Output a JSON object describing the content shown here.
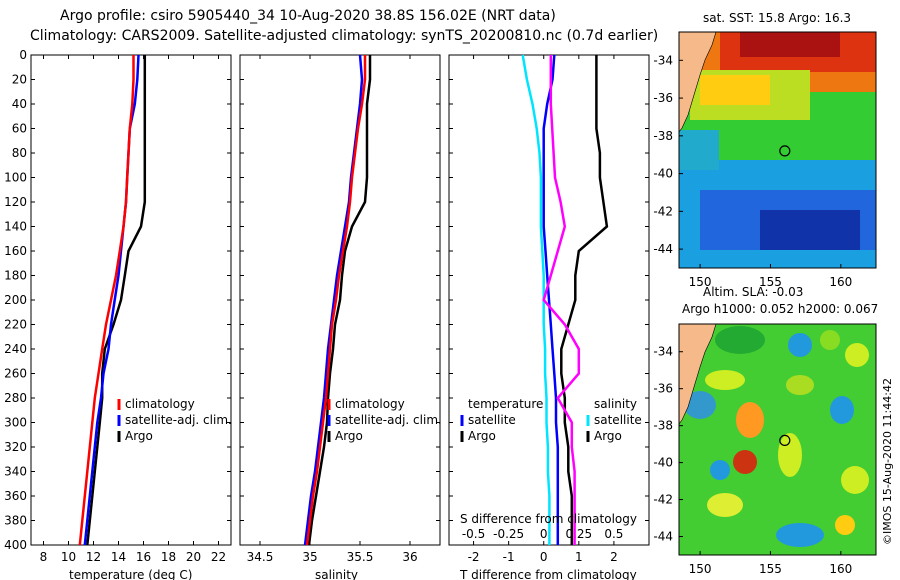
{
  "header": {
    "line1": "Argo profile: csiro 5905440_34 10-Aug-2020 38.8S 156.02E (NRT data)",
    "line2": "Climatology: CARS2009. Satellite-adjusted climatology: synTS_20200810.nc (0.7d earlier)"
  },
  "depth_ticks": [
    "0",
    "20",
    "40",
    "60",
    "80",
    "100",
    "120",
    "140",
    "160",
    "180",
    "200",
    "220",
    "240",
    "260",
    "280",
    "300",
    "320",
    "340",
    "360",
    "380",
    "400"
  ],
  "colors": {
    "climatology": "#ff0000",
    "satellite": "#0000ff",
    "argo": "#000000",
    "sat_temp_diff": "#00e5ff",
    "sal_diff": "#ff00ff",
    "land": "#f5b98a"
  },
  "chart_data": [
    {
      "type": "line",
      "title": "",
      "xlabel": "temperature (deg C)",
      "ylabel": "depth",
      "xlim": [
        7,
        23
      ],
      "ylim": [
        400,
        0
      ],
      "xticks": [
        "8",
        "10",
        "12",
        "14",
        "16",
        "18",
        "20",
        "22"
      ],
      "legend": [
        "climatology",
        "satellite-adj. clim.",
        "Argo"
      ],
      "series": [
        {
          "name": "climatology",
          "color": "#ff0000",
          "x": [
            15.2,
            15.2,
            15.1,
            14.9,
            14.8,
            14.7,
            14.6,
            14.4,
            14.1,
            13.8,
            13.4,
            13.0,
            12.7,
            12.4,
            12.1,
            11.9,
            11.7,
            11.5,
            11.3,
            11.1,
            10.9
          ],
          "y": [
            0,
            20,
            40,
            60,
            80,
            100,
            120,
            140,
            160,
            180,
            200,
            220,
            240,
            260,
            280,
            300,
            320,
            340,
            360,
            380,
            400
          ]
        },
        {
          "name": "satellite-adj. clim.",
          "color": "#0000ff",
          "x": [
            15.6,
            15.5,
            15.3,
            14.9,
            14.8,
            14.7,
            14.6,
            14.4,
            14.2,
            14.0,
            13.7,
            13.4,
            13.2,
            12.8,
            12.6,
            12.3,
            12.1,
            11.9,
            11.7,
            11.5,
            11.3
          ],
          "y": [
            0,
            20,
            40,
            60,
            80,
            100,
            120,
            140,
            160,
            180,
            200,
            220,
            240,
            260,
            280,
            300,
            320,
            340,
            360,
            380,
            400
          ]
        },
        {
          "name": "Argo",
          "color": "#000000",
          "x": [
            16.1,
            16.1,
            16.1,
            16.1,
            16.1,
            16.1,
            16.1,
            15.8,
            14.8,
            14.5,
            14.2,
            13.6,
            12.9,
            12.7,
            12.7,
            12.5,
            12.3,
            12.1,
            11.9,
            11.7,
            11.5
          ],
          "y": [
            0,
            20,
            40,
            60,
            80,
            100,
            120,
            140,
            160,
            180,
            200,
            220,
            240,
            260,
            280,
            300,
            320,
            340,
            360,
            380,
            400
          ]
        }
      ]
    },
    {
      "type": "line",
      "title": "",
      "xlabel": "salinity",
      "ylabel": "depth",
      "xlim": [
        34.3,
        36.3
      ],
      "ylim": [
        400,
        0
      ],
      "xticks": [
        "34.5",
        "35",
        "35.5",
        "36"
      ],
      "legend": [
        "climatology",
        "satellite-adj. clim.",
        "Argo"
      ],
      "series": [
        {
          "name": "climatology",
          "color": "#ff0000",
          "x": [
            35.55,
            35.55,
            35.52,
            35.48,
            35.45,
            35.42,
            35.4,
            35.37,
            35.33,
            35.29,
            35.26,
            35.22,
            35.2,
            35.18,
            35.16,
            35.13,
            35.1,
            35.07,
            35.03,
            35.0,
            34.97
          ],
          "y": [
            0,
            20,
            40,
            60,
            80,
            100,
            120,
            140,
            160,
            180,
            200,
            220,
            240,
            260,
            280,
            300,
            320,
            340,
            360,
            380,
            400
          ]
        },
        {
          "name": "satellite-adj. clim.",
          "color": "#0000ff",
          "x": [
            35.5,
            35.52,
            35.5,
            35.47,
            35.44,
            35.41,
            35.39,
            35.35,
            35.31,
            35.27,
            35.24,
            35.21,
            35.18,
            35.16,
            35.14,
            35.11,
            35.08,
            35.05,
            35.01,
            34.98,
            34.95
          ],
          "y": [
            0,
            20,
            40,
            60,
            80,
            100,
            120,
            140,
            160,
            180,
            200,
            220,
            240,
            260,
            280,
            300,
            320,
            340,
            360,
            380,
            400
          ]
        },
        {
          "name": "Argo",
          "color": "#000000",
          "x": [
            35.6,
            35.6,
            35.57,
            35.57,
            35.57,
            35.57,
            35.55,
            35.42,
            35.35,
            35.32,
            35.3,
            35.25,
            35.23,
            35.2,
            35.18,
            35.17,
            35.14,
            35.1,
            35.06,
            35.02,
            34.99
          ],
          "y": [
            0,
            20,
            40,
            60,
            80,
            100,
            120,
            140,
            160,
            180,
            200,
            220,
            240,
            260,
            280,
            300,
            320,
            340,
            360,
            380,
            400
          ]
        }
      ]
    },
    {
      "type": "line",
      "title": "",
      "xlabel": "T difference from climatology",
      "x2label": "S difference from climatology",
      "ylabel": "depth",
      "xlim": [
        -2.7,
        3.0
      ],
      "x2lim": [
        -0.675,
        0.75
      ],
      "ylim": [
        400,
        0
      ],
      "xticks": [
        "-2",
        "-1",
        "0",
        "1",
        "2"
      ],
      "x2ticks": [
        "-0.5",
        "-0.25",
        "0",
        "0.25",
        "0.5"
      ],
      "legend": {
        "temperature": [
          "satellite",
          "Argo"
        ],
        "salinity": [
          "satellite",
          "Argo"
        ]
      },
      "legend_titles": {
        "temperature": "temperature",
        "salinity": "salinity"
      },
      "series": [
        {
          "name": "temperature satellite",
          "color": "#0000ff",
          "axis": "T",
          "x": [
            0.3,
            0.25,
            0.1,
            0.0,
            0.0,
            0.0,
            0.0,
            0.0,
            0.05,
            0.1,
            0.15,
            0.2,
            0.25,
            0.3,
            0.35,
            0.35,
            0.4,
            0.4,
            0.4,
            0.4,
            0.4
          ],
          "y": [
            0,
            20,
            40,
            60,
            80,
            100,
            120,
            140,
            160,
            180,
            200,
            220,
            240,
            260,
            280,
            300,
            320,
            340,
            360,
            380,
            400
          ]
        },
        {
          "name": "temperature Argo",
          "color": "#000000",
          "axis": "T",
          "x": [
            1.5,
            1.5,
            1.5,
            1.5,
            1.6,
            1.6,
            1.7,
            1.8,
            1.0,
            0.9,
            0.9,
            0.7,
            0.5,
            0.5,
            0.6,
            0.6,
            0.7,
            0.7,
            0.8,
            0.8,
            0.8
          ],
          "y": [
            0,
            20,
            40,
            60,
            80,
            100,
            120,
            140,
            160,
            180,
            200,
            220,
            240,
            260,
            280,
            300,
            320,
            340,
            360,
            380,
            400
          ]
        },
        {
          "name": "salinity satellite",
          "color": "#00e5ff",
          "axis": "S",
          "x": [
            -0.15,
            -0.12,
            -0.08,
            -0.05,
            -0.03,
            -0.02,
            -0.02,
            -0.02,
            -0.01,
            0.0,
            0.0,
            0.0,
            0.01,
            0.01,
            0.02,
            0.02,
            0.03,
            0.03,
            0.04,
            0.04,
            0.04
          ],
          "y": [
            0,
            20,
            40,
            60,
            80,
            100,
            120,
            140,
            160,
            180,
            200,
            220,
            240,
            260,
            280,
            300,
            320,
            340,
            360,
            380,
            400
          ]
        },
        {
          "name": "salinity Argo",
          "color": "#ff00ff",
          "axis": "S",
          "x": [
            0.05,
            0.05,
            0.05,
            0.06,
            0.07,
            0.08,
            0.12,
            0.15,
            0.1,
            0.05,
            0.0,
            0.15,
            0.25,
            0.25,
            0.1,
            0.2,
            0.2,
            0.22,
            0.22,
            0.22,
            0.22
          ],
          "y": [
            0,
            20,
            40,
            60,
            80,
            100,
            120,
            140,
            160,
            180,
            200,
            220,
            240,
            260,
            280,
            300,
            320,
            340,
            360,
            380,
            400
          ]
        }
      ]
    },
    {
      "type": "heatmap",
      "title": "sat. SST: 15.8 Argo: 16.3",
      "xticks": [
        "150",
        "155",
        "160"
      ],
      "yticks": [
        "-34",
        "-36",
        "-38",
        "-40",
        "-42",
        "-44"
      ],
      "xlim": [
        148.5,
        162.5
      ],
      "ylim": [
        -45,
        -32.5
      ],
      "marker": {
        "lon": 156.02,
        "lat": -38.8
      }
    },
    {
      "type": "heatmap",
      "title": "Altim. SLA: -0.03",
      "subtitle": "Argo h1000: 0.052 h2000: 0.067",
      "xticks": [
        "150",
        "155",
        "160"
      ],
      "yticks": [
        "-34",
        "-36",
        "-38",
        "-40",
        "-42",
        "-44"
      ],
      "xlim": [
        148.5,
        162.5
      ],
      "ylim": [
        -45,
        -32.5
      ],
      "marker": {
        "lon": 156.02,
        "lat": -38.8
      }
    }
  ],
  "credit": "©IMOS 15-Aug-2020 11:44:42"
}
